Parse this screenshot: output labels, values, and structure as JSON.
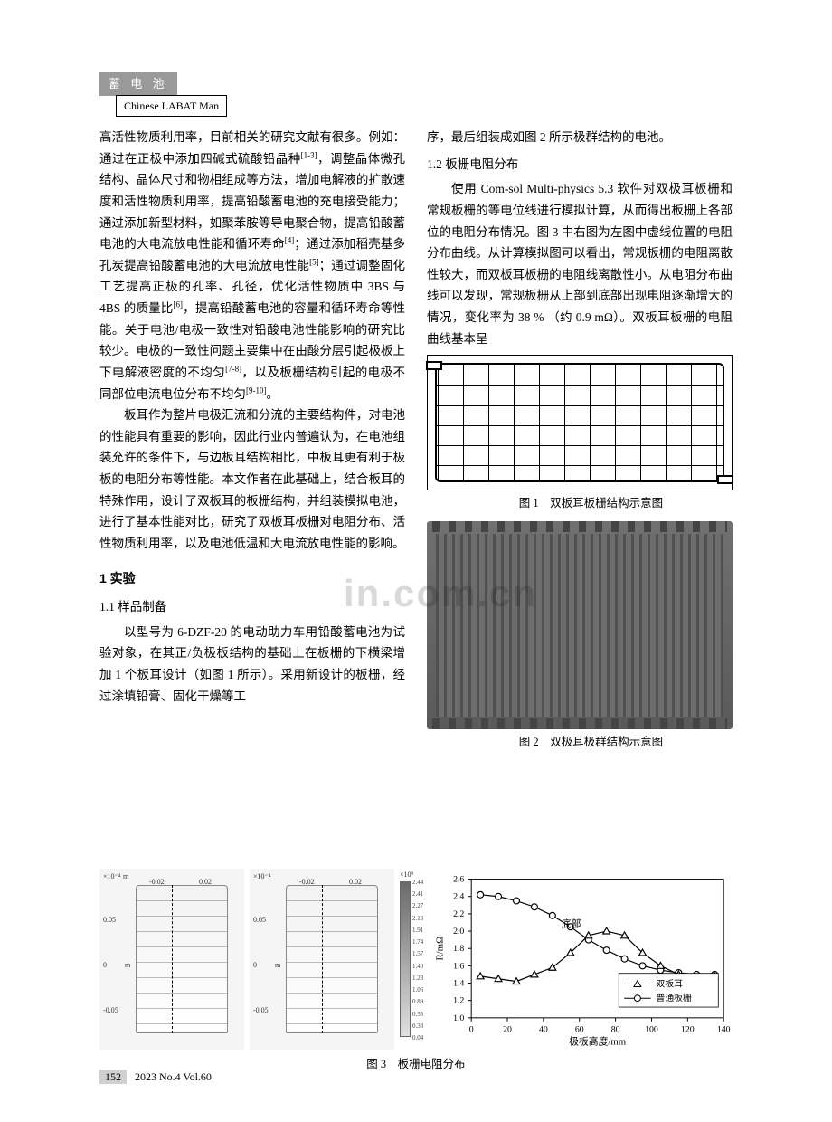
{
  "header": {
    "cn": "蓄 电 池",
    "en": "Chinese LABAT Man"
  },
  "left_column": {
    "p1a": "高活性物质利用率，目前相关的研究文献有很多。例如：通过在正极中添加四碱式硫酸铅晶种",
    "p1b": "，调整晶体微孔结构、晶体尺寸和物相组成等方法，增加电解液的扩散速度和活性物质利用率，提高铅酸蓄电池的充电接受能力；通过添加新型材料，如聚苯胺等导电聚合物，提高铅酸蓄电池的大电流放电性能和循环寿命",
    "p1c": "；通过添加稻壳基多孔炭提高铅酸蓄电池的大电流放电性能",
    "p1d": "；通过调整固化工艺提高正极的孔率、孔径，优化活性物质中 3BS 与 4BS 的质量比",
    "p1e": "，提高铅酸蓄电池的容量和循环寿命等性能。关于电池/电极一致性对铅酸电池性能影响的研究比较少。电极的一致性问题主要集中在由酸分层引起极板上下电解液密度的不均匀",
    "p1f": "，以及板栅结构引起的电极不同部位电流电位分布不均匀",
    "p1g": "。",
    "cite1": "[1-3]",
    "cite4": "[4]",
    "cite5": "[5]",
    "cite6": "[6]",
    "cite78": "[7-8]",
    "cite910": "[9-10]",
    "p2": "板耳作为整片电极汇流和分流的主要结构件，对电池的性能具有重要的影响，因此行业内普遍认为，在电池组装允许的条件下，与边板耳结构相比，中板耳更有利于极板的电阻分布等性能。本文作者在此基础上，结合板耳的特殊作用，设计了双板耳的板栅结构，并组装模拟电池，进行了基本性能对比，研究了双板耳板栅对电阻分布、活性物质利用率，以及电池低温和大电流放电性能的影响。",
    "section1": "1 实验",
    "sub11": "1.1 样品制备",
    "p3": "以型号为 6-DZF-20 的电动助力车用铅酸蓄电池为试验对象，在其正/负极板结构的基础上在板栅的下横梁增加 1 个板耳设计（如图 1 所示）。采用新设计的板栅，经过涂填铅膏、固化干燥等工"
  },
  "right_column": {
    "p1": "序，最后组装成如图 2 所示极群结构的电池。",
    "sub12": "1.2 板栅电阻分布",
    "p2": "使用 Com-sol Multi-physics 5.3 软件对双极耳板栅和常规板栅的等电位线进行模拟计算，从而得出板栅上各部位的电阻分布情况。图 3 中右图为左图中虚线位置的电阻分布曲线。从计算模拟图可以看出，常规板栅的电阻离散性较大，而双板耳板栅的电阻线离散性小。从电阻分布曲线可以发现，常规板栅从上部到底部出现电阻逐渐增大的情况，变化率为 38 % （约 0.9 mΩ）。双板耳板栅的电阻曲线基本呈",
    "fig1_cap": "图 1　双板耳板栅结构示意图",
    "fig2_cap": "图 2　双极耳极群结构示意图"
  },
  "fig3": {
    "caption": "图 3　板栅电阻分布",
    "sim": {
      "exp_top": "×10⁻⁴",
      "xticks": [
        "-0.02",
        "0.02"
      ],
      "yticks": [
        "0.05",
        "0",
        "-0.05"
      ],
      "unit_y": "m",
      "unit_x": "m",
      "cbar_exp": "×10⁹",
      "cbar_vals": [
        "2.44",
        "2.41",
        "2.27",
        "2.13",
        "1.91",
        "1.74",
        "1.57",
        "1.40",
        "1.23",
        "1.06",
        "0.89",
        "0.55",
        "0.38",
        "0.04"
      ],
      "arrow_top": "顶部",
      "arrow_bot": "底部"
    },
    "chart": {
      "ylabel": "R/mΩ",
      "xlabel": "极板高度/mm",
      "yticks": [
        1.0,
        1.2,
        1.4,
        1.6,
        1.8,
        2.0,
        2.2,
        2.4,
        2.6
      ],
      "xticks": [
        0,
        20,
        40,
        60,
        80,
        100,
        120,
        140
      ],
      "legend_a": "双板耳",
      "legend_b": "普通板栅",
      "annot": "底部",
      "series_a_x": [
        5,
        15,
        25,
        35,
        45,
        55,
        65,
        75,
        85,
        95,
        105,
        115,
        125,
        135
      ],
      "series_a_y": [
        1.48,
        1.45,
        1.42,
        1.5,
        1.58,
        1.75,
        1.95,
        2.0,
        1.95,
        1.75,
        1.6,
        1.5,
        1.45,
        1.48
      ],
      "series_b_x": [
        5,
        15,
        25,
        35,
        45,
        55,
        65,
        75,
        85,
        95,
        105,
        115,
        125,
        135
      ],
      "series_b_y": [
        2.42,
        2.4,
        2.35,
        2.28,
        2.18,
        2.05,
        1.9,
        1.78,
        1.68,
        1.6,
        1.55,
        1.52,
        1.5,
        1.5
      ],
      "marker_a": "triangle",
      "marker_b": "circle",
      "color_a": "#000000",
      "color_b": "#000000",
      "ylim": [
        1.0,
        2.6
      ],
      "xlim": [
        0,
        140
      ]
    }
  },
  "footer": {
    "page": "152",
    "issue": "2023 No.4 Vol.60"
  }
}
